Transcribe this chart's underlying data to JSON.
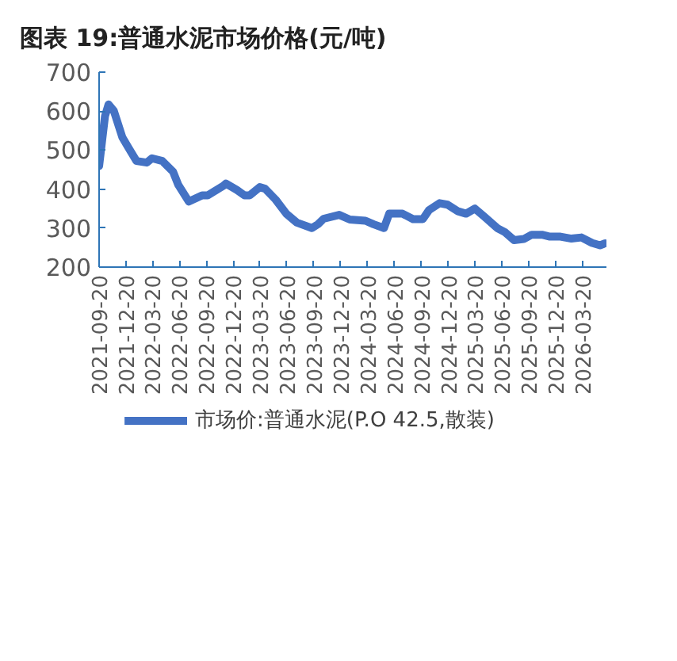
{
  "chart_data": {
    "type": "line",
    "title": "图表 19:普通水泥市场价格(元/吨)",
    "x": [
      "2021-09-20",
      "2021-10-10",
      "2021-10-22",
      "2021-11-09",
      "2021-12-08",
      "2021-12-29",
      "2022-01-25",
      "2022-03-01",
      "2022-03-19",
      "2022-04-23",
      "2022-05-29",
      "2022-06-16",
      "2022-07-22",
      "2022-09-05",
      "2022-09-24",
      "2022-11-17",
      "2022-11-25",
      "2023-01-01",
      "2023-01-27",
      "2023-02-14",
      "2023-03-20",
      "2023-04-07",
      "2023-05-13",
      "2023-06-18",
      "2023-07-24",
      "2023-09-13",
      "2023-10-04",
      "2023-10-23",
      "2023-12-15",
      "2024-01-20",
      "2024-03-13",
      "2024-04-09",
      "2024-05-15",
      "2024-06-02",
      "2024-07-17",
      "2024-08-22",
      "2024-09-24",
      "2024-10-15",
      "2024-11-20",
      "2024-12-17",
      "2025-01-22",
      "2025-02-18",
      "2025-03-20",
      "2025-04-20",
      "2025-06-04",
      "2025-07-01",
      "2025-07-31",
      "2025-09-02",
      "2025-09-29",
      "2025-11-03",
      "2025-11-30",
      "2026-01-05",
      "2026-02-11",
      "2026-03-17",
      "2026-04-22",
      "2026-05-19",
      "2026-06-06"
    ],
    "series": [
      {
        "name": "市场价:普通水泥(P.O 42.5,散装)",
        "color": "#4472c4",
        "values": [
          459,
          587,
          617,
          601,
          533,
          506,
          472,
          468,
          479,
          472,
          445,
          411,
          368,
          384,
          384,
          409,
          414,
          398,
          384,
          384,
          405,
          401,
          373,
          337,
          314,
          300,
          310,
          324,
          334,
          322,
          319,
          310,
          300,
          337,
          337,
          323,
          323,
          346,
          364,
          360,
          343,
          337,
          350,
          330,
          300,
          289,
          269,
          272,
          283,
          283,
          278,
          278,
          273,
          276,
          262,
          256,
          261
        ]
      }
    ],
    "xlim": [
      "2021-09-20",
      "2026-06-10"
    ],
    "xticks": [
      "2021-09-20",
      "2021-12-20",
      "2022-03-20",
      "2022-06-20",
      "2022-09-20",
      "2022-12-20",
      "2023-03-20",
      "2023-06-20",
      "2023-09-20",
      "2023-12-20",
      "2024-03-20",
      "2024-06-20",
      "2024-09-20",
      "2024-12-20",
      "2025-03-20",
      "2025-06-20",
      "2025-09-20",
      "2025-12-20",
      "2026-03-20"
    ],
    "ylim": [
      200,
      700
    ],
    "yticks": [
      200,
      300,
      400,
      500,
      600,
      700
    ],
    "grid": false,
    "legend": "bottom",
    "marker": "none",
    "line_style": "solid"
  }
}
